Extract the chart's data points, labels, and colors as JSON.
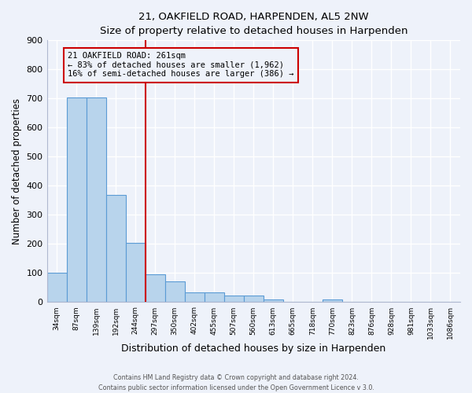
{
  "title": "21, OAKFIELD ROAD, HARPENDEN, AL5 2NW",
  "subtitle": "Size of property relative to detached houses in Harpenden",
  "xlabel": "Distribution of detached houses by size in Harpenden",
  "ylabel": "Number of detached properties",
  "bin_labels": [
    "34sqm",
    "87sqm",
    "139sqm",
    "192sqm",
    "244sqm",
    "297sqm",
    "350sqm",
    "402sqm",
    "455sqm",
    "507sqm",
    "560sqm",
    "613sqm",
    "665sqm",
    "718sqm",
    "770sqm",
    "823sqm",
    "876sqm",
    "928sqm",
    "981sqm",
    "1033sqm",
    "1086sqm"
  ],
  "bar_values": [
    100,
    705,
    705,
    370,
    205,
    95,
    72,
    35,
    35,
    22,
    22,
    10,
    0,
    0,
    10,
    0,
    0,
    0,
    0,
    0,
    0
  ],
  "bar_color": "#b8d4ec",
  "bar_edge_color": "#5b9bd5",
  "vline_x_index": 4.5,
  "vline_color": "#cc0000",
  "annotation_title": "21 OAKFIELD ROAD: 261sqm",
  "annotation_line1": "← 83% of detached houses are smaller (1,962)",
  "annotation_line2": "16% of semi-detached houses are larger (386) →",
  "annotation_box_color": "#cc0000",
  "ylim": [
    0,
    900
  ],
  "yticks": [
    0,
    100,
    200,
    300,
    400,
    500,
    600,
    700,
    800,
    900
  ],
  "footer1": "Contains HM Land Registry data © Crown copyright and database right 2024.",
  "footer2": "Contains public sector information licensed under the Open Government Licence v 3.0.",
  "background_color": "#eef2fa",
  "grid_color": "#ffffff"
}
